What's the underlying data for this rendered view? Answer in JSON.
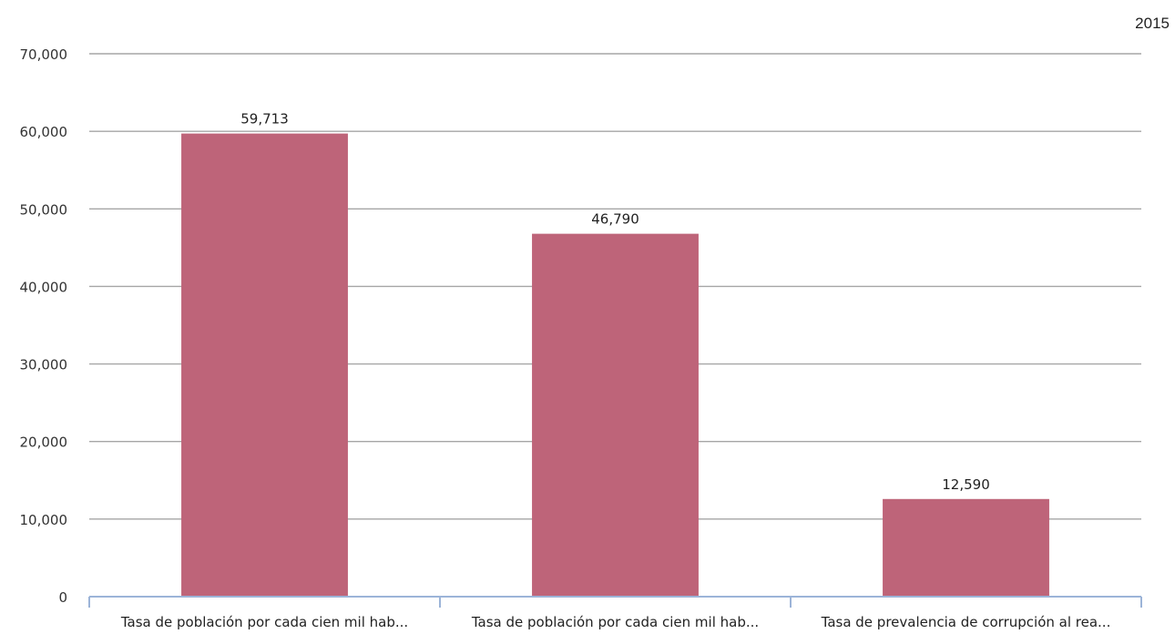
{
  "year_label": "2015",
  "chart_data": {
    "type": "bar",
    "categories": [
      "Tasa de población por cada cien mil hab...",
      "Tasa de población por cada cien mil hab...",
      "Tasa de prevalencia de corrupción al rea..."
    ],
    "values": [
      59713,
      46790,
      12590
    ],
    "value_labels": [
      "59,713",
      "46,790",
      "12,590"
    ],
    "ylim": [
      0,
      70000
    ],
    "yticks": [
      0,
      10000,
      20000,
      30000,
      40000,
      50000,
      60000,
      70000
    ],
    "ytick_labels": [
      "0",
      "10,000",
      "20,000",
      "30,000",
      "40,000",
      "50,000",
      "60,000",
      "70,000"
    ],
    "grid": true,
    "bar_color": "#be6479",
    "grid_color": "#a6a6a6",
    "axis_color": "#9cb4d8",
    "title": "",
    "xlabel": "",
    "ylabel": ""
  }
}
